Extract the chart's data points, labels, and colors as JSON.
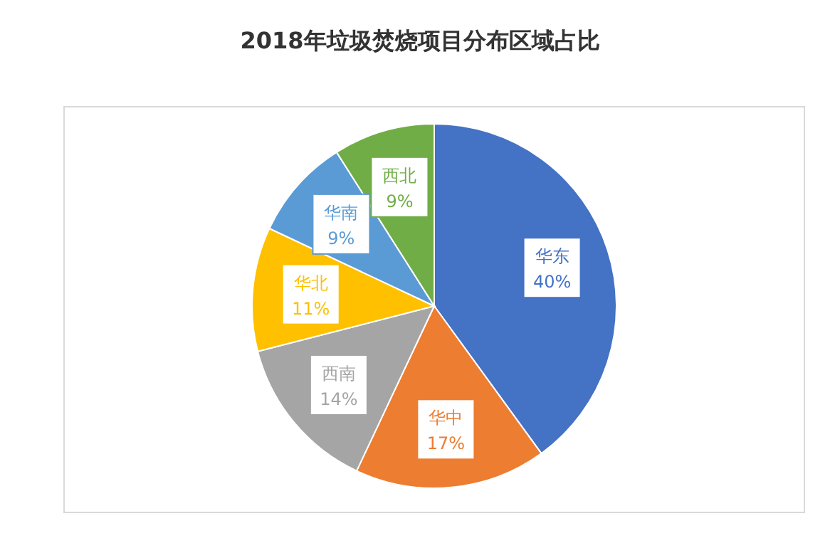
{
  "chart_data": {
    "type": "pie",
    "title": "2018年垃圾焚烧项目分布区域占比",
    "categories": [
      "华东",
      "华中",
      "西南",
      "华北",
      "华南",
      "西北"
    ],
    "values": [
      40,
      17,
      14,
      11,
      9,
      9
    ],
    "value_labels": [
      "40%",
      "17%",
      "14%",
      "11%",
      "9%",
      "9%"
    ],
    "colors": [
      "#4472c4",
      "#ed7d31",
      "#a5a5a5",
      "#ffc000",
      "#5b9bd5",
      "#70ad47"
    ]
  }
}
